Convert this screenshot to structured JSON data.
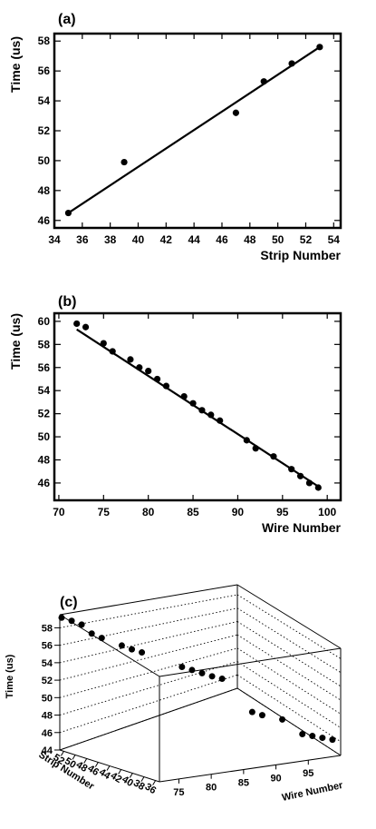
{
  "chart_data": [
    {
      "panel": "(a)",
      "type": "scatter",
      "xlabel": "Strip Number",
      "ylabel": "Time (us)",
      "xlim": [
        34,
        54.5
      ],
      "ylim": [
        45.5,
        58.5
      ],
      "xticks": [
        34,
        36,
        38,
        40,
        42,
        44,
        46,
        48,
        50,
        52,
        54
      ],
      "yticks": [
        46,
        48,
        50,
        52,
        54,
        56,
        58
      ],
      "points": [
        {
          "x": 35,
          "y": 46.5
        },
        {
          "x": 39,
          "y": 49.9
        },
        {
          "x": 47,
          "y": 53.2
        },
        {
          "x": 49,
          "y": 55.3
        },
        {
          "x": 51,
          "y": 56.5
        },
        {
          "x": 53,
          "y": 57.6
        }
      ],
      "fit_line": {
        "x": [
          35,
          53
        ],
        "y": [
          46.5,
          57.6
        ]
      }
    },
    {
      "panel": "(b)",
      "type": "scatter",
      "xlabel": "Wire Number",
      "ylabel": "Time (us)",
      "xlim": [
        69.5,
        101.5
      ],
      "ylim": [
        44.5,
        60.7
      ],
      "xticks": [
        70,
        75,
        80,
        85,
        90,
        95,
        100
      ],
      "yticks": [
        46,
        48,
        50,
        52,
        54,
        56,
        58,
        60
      ],
      "points": [
        {
          "x": 72,
          "y": 59.8
        },
        {
          "x": 73,
          "y": 59.5
        },
        {
          "x": 75,
          "y": 58.1
        },
        {
          "x": 76,
          "y": 57.4
        },
        {
          "x": 78,
          "y": 56.7
        },
        {
          "x": 79,
          "y": 56.0
        },
        {
          "x": 80,
          "y": 55.7
        },
        {
          "x": 81,
          "y": 55.0
        },
        {
          "x": 82,
          "y": 54.4
        },
        {
          "x": 84,
          "y": 53.5
        },
        {
          "x": 85,
          "y": 52.9
        },
        {
          "x": 86,
          "y": 52.3
        },
        {
          "x": 87,
          "y": 51.9
        },
        {
          "x": 88,
          "y": 51.4
        },
        {
          "x": 91,
          "y": 49.7
        },
        {
          "x": 92,
          "y": 49.0
        },
        {
          "x": 94,
          "y": 48.3
        },
        {
          "x": 96,
          "y": 47.2
        },
        {
          "x": 97,
          "y": 46.6
        },
        {
          "x": 98,
          "y": 46.0
        },
        {
          "x": 99,
          "y": 45.6
        }
      ],
      "fit_line": {
        "x": [
          72,
          99
        ],
        "y": [
          59.3,
          45.7
        ]
      }
    },
    {
      "panel": "(c)",
      "type": "scatter3d",
      "xlabel": "Wire Number",
      "ylabel": "Strip Number",
      "zlabel": "Time (us)",
      "xticks": [
        75,
        80,
        85,
        90,
        95
      ],
      "yticks": [
        36,
        38,
        40,
        42,
        44,
        46,
        48,
        50,
        52
      ],
      "zticks": [
        44,
        46,
        48,
        50,
        52,
        54,
        56,
        58
      ],
      "grid": "dotted"
    }
  ]
}
